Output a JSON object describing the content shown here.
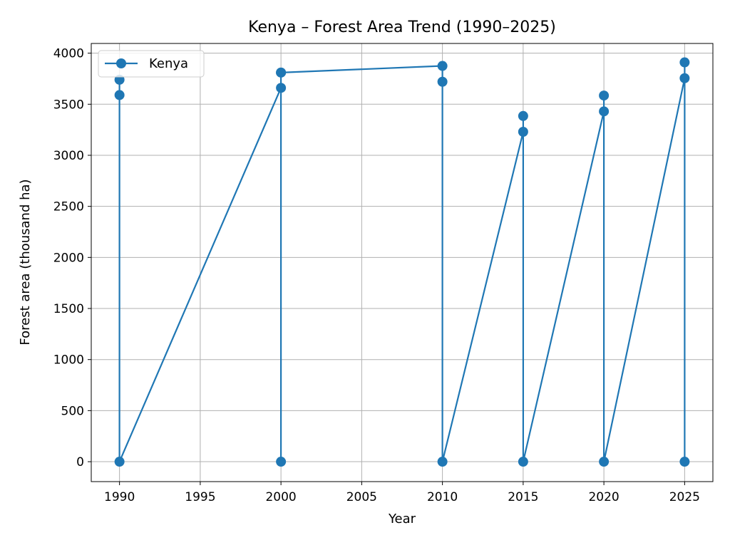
{
  "chart_data": {
    "type": "line",
    "title": "Kenya – Forest Area Trend (1990–2025)",
    "xlabel": "Year",
    "ylabel": "Forest area (thousand ha)",
    "xlim": [
      1988.25,
      2026.75
    ],
    "ylim": [
      -195,
      4095
    ],
    "xticks": [
      1990,
      1995,
      2000,
      2005,
      2010,
      2015,
      2020,
      2025
    ],
    "yticks": [
      0,
      500,
      1000,
      1500,
      2000,
      2500,
      3000,
      3500,
      4000
    ],
    "grid": true,
    "legend_position": "upper-left",
    "series": [
      {
        "name": "Kenya",
        "color": "#1f77b4",
        "marker": "circle",
        "points": [
          {
            "x": 1990,
            "y": 3740
          },
          {
            "x": 1990,
            "y": 3590
          },
          {
            "x": 1990,
            "y": 0
          },
          {
            "x": 2000,
            "y": 3660
          },
          {
            "x": 2000,
            "y": 3810
          },
          {
            "x": 2000,
            "y": 0
          },
          {
            "x": 2000,
            "y": 3810
          },
          {
            "x": 2010,
            "y": 3875
          },
          {
            "x": 2010,
            "y": 3720
          },
          {
            "x": 2010,
            "y": 0
          },
          {
            "x": 2015,
            "y": 3230
          },
          {
            "x": 2015,
            "y": 3385
          },
          {
            "x": 2015,
            "y": 0
          },
          {
            "x": 2020,
            "y": 3430
          },
          {
            "x": 2020,
            "y": 3585
          },
          {
            "x": 2020,
            "y": 0
          },
          {
            "x": 2025,
            "y": 3755
          },
          {
            "x": 2025,
            "y": 3910
          },
          {
            "x": 2025,
            "y": 0
          }
        ]
      }
    ]
  }
}
